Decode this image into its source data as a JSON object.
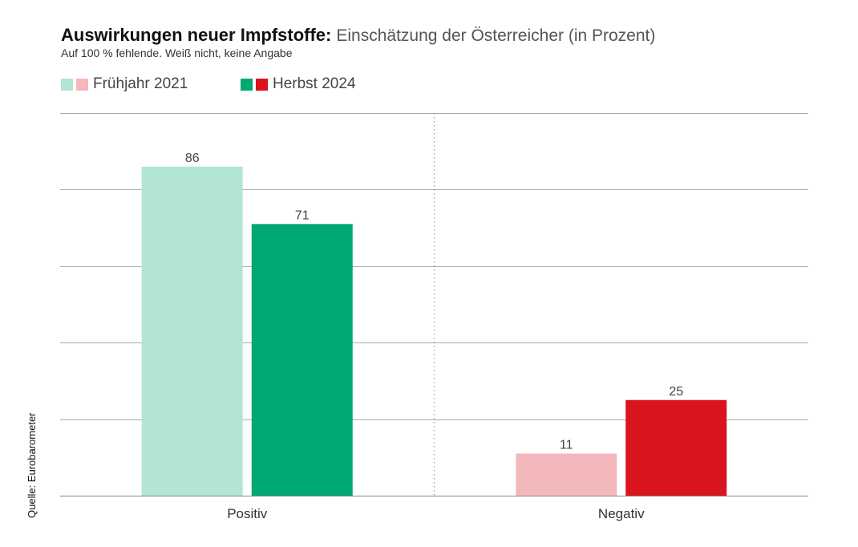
{
  "title": {
    "main": "Auswirkungen neuer Impfstoffe:",
    "sub": "Einschätzung der Österreicher (in Prozent)"
  },
  "subtitle": "Auf 100 % fehlende. Weiß nicht, keine Angabe",
  "source": "Quelle: Eurobarometer",
  "colors": {
    "fruehjahr_positiv": "#b3e5d5",
    "fruehjahr_negativ": "#f2b8bc",
    "herbst_positiv": "#00a874",
    "herbst_negativ": "#d9141e",
    "grid": "#aaaaaa",
    "divider": "#999999"
  },
  "legend": [
    {
      "label": "Frühjahr 2021",
      "swatch_colors": [
        "#b3e5d5",
        "#f2b8bc"
      ]
    },
    {
      "label": "Herbst 2024",
      "swatch_colors": [
        "#00a874",
        "#d9141e"
      ]
    }
  ],
  "chart_data": {
    "type": "bar",
    "title": "Auswirkungen neuer Impfstoffe: Einschätzung der Österreicher (in Prozent)",
    "subtitle": "Auf 100 % fehlende. Weiß nicht, keine Angabe",
    "categories": [
      "Positiv",
      "Negativ"
    ],
    "series": [
      {
        "name": "Frühjahr 2021",
        "values": [
          86,
          11
        ],
        "colors": [
          "#b3e5d5",
          "#f2b8bc"
        ]
      },
      {
        "name": "Herbst 2024",
        "values": [
          71,
          25
        ],
        "colors": [
          "#00a874",
          "#d9141e"
        ]
      }
    ],
    "ylim": [
      0,
      100
    ],
    "yticks": [
      0,
      20,
      40,
      60,
      80,
      100
    ],
    "ytick_labels_visible": false,
    "grid": true,
    "legend_position": "top-left",
    "xlabel": "",
    "ylabel": ""
  }
}
